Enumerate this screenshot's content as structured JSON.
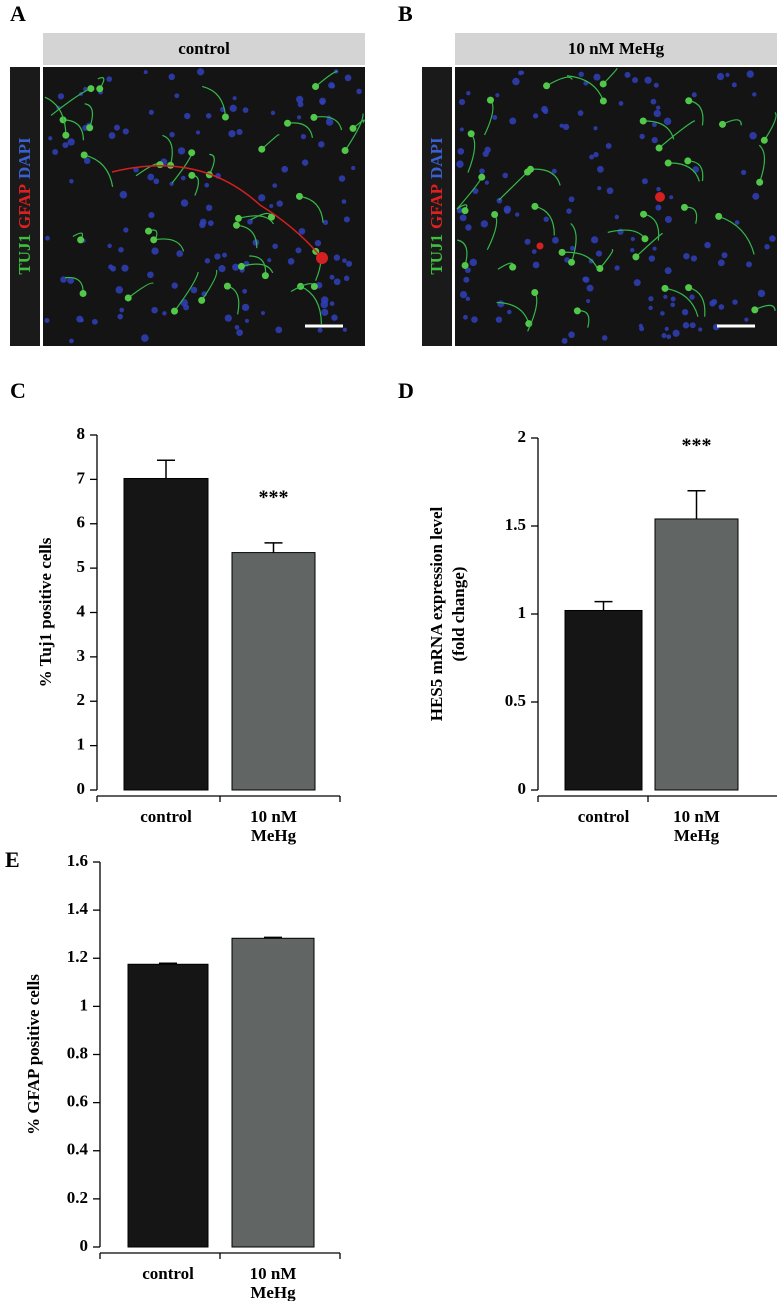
{
  "panels": [
    {
      "label": "A",
      "header": "control",
      "stains": [
        "TUJ1",
        "GFAP",
        "DAPI"
      ]
    },
    {
      "label": "B",
      "header": "10 nM MeHg",
      "stains": [
        "TUJ1",
        "GFAP",
        "DAPI"
      ]
    }
  ],
  "chart_data": [
    {
      "type": "bar",
      "panel": "C",
      "ylabel": [
        "% Tuj1 positive cells"
      ],
      "categories": [
        [
          "control"
        ],
        [
          "10 nM",
          "MeHg"
        ]
      ],
      "values": [
        7.02,
        5.35
      ],
      "errors": [
        0.41,
        0.22
      ],
      "colors": [
        "#151515",
        "#616563"
      ],
      "annotation": "***",
      "ylim": [
        0,
        8
      ],
      "yticks": [
        0,
        1,
        2,
        3,
        4,
        5,
        6,
        7,
        8
      ]
    },
    {
      "type": "bar",
      "panel": "D",
      "ylabel": [
        "HES5 mRNA expression level",
        "(fold change)"
      ],
      "categories": [
        [
          "control"
        ],
        [
          "10 nM",
          "MeHg"
        ]
      ],
      "values": [
        1.02,
        1.54
      ],
      "errors": [
        0.05,
        0.16
      ],
      "colors": [
        "#151515",
        "#616563"
      ],
      "annotation": "***",
      "ylim": [
        0,
        2
      ],
      "yticks": [
        0,
        0.5,
        1,
        1.5,
        2
      ]
    },
    {
      "type": "bar",
      "panel": "E",
      "ylabel": [
        "% GFAP positive cells"
      ],
      "categories": [
        [
          "control"
        ],
        [
          "10 nM",
          "MeHg"
        ]
      ],
      "values": [
        1.175,
        1.283
      ],
      "errors": [
        0.004,
        0.004
      ],
      "colors": [
        "#151515",
        "#616563"
      ],
      "ylim": [
        0,
        1.6
      ],
      "yticks": [
        0,
        0.2,
        0.4,
        0.6,
        0.8,
        1,
        1.2,
        1.4,
        1.6
      ]
    }
  ]
}
